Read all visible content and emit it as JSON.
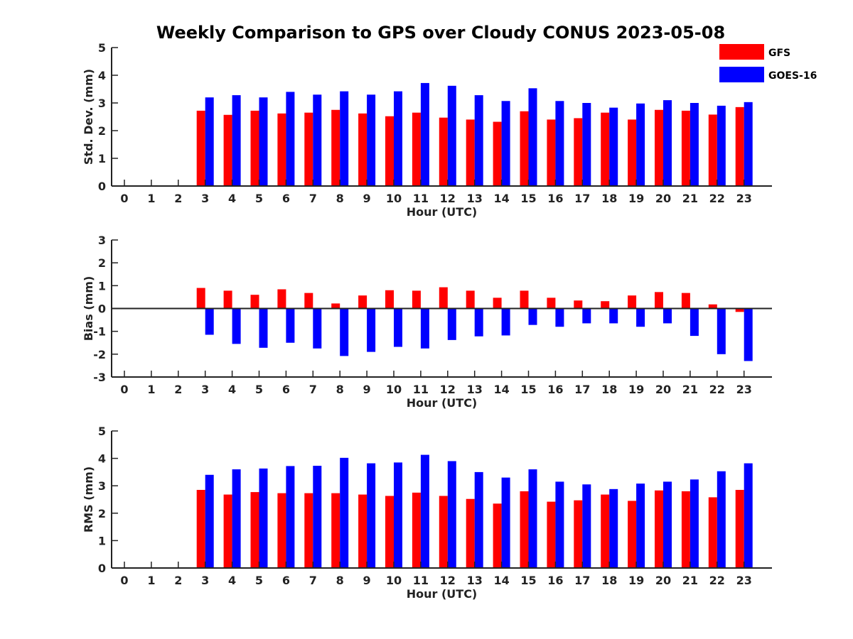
{
  "title": "Weekly Comparison to GPS over Cloudy CONUS 2023-05-08",
  "legend": {
    "placement": "top-right",
    "entries": [
      {
        "name": "GFS",
        "color": "#ff0000"
      },
      {
        "name": "GOES-16",
        "color": "#0000ff"
      }
    ]
  },
  "chart_data": [
    {
      "type": "bar",
      "xlabel": "Hour (UTC)",
      "ylabel": "Std. Dev. (mm)",
      "ylim": [
        0,
        5
      ],
      "yticks": [
        "0",
        "1",
        "2",
        "3",
        "4",
        "5"
      ],
      "categories": [
        "0",
        "1",
        "2",
        "3",
        "4",
        "5",
        "6",
        "7",
        "8",
        "9",
        "10",
        "11",
        "12",
        "13",
        "14",
        "15",
        "16",
        "17",
        "18",
        "19",
        "20",
        "21",
        "22",
        "23"
      ],
      "series": [
        {
          "name": "GFS",
          "color": "#ff0000",
          "values": [
            null,
            null,
            null,
            2.72,
            2.57,
            2.72,
            2.62,
            2.65,
            2.75,
            2.62,
            2.52,
            2.65,
            2.47,
            2.4,
            2.32,
            2.7,
            2.4,
            2.45,
            2.65,
            2.4,
            2.75,
            2.72,
            2.58,
            2.85
          ]
        },
        {
          "name": "GOES-16",
          "color": "#0000ff",
          "values": [
            null,
            null,
            null,
            3.2,
            3.28,
            3.2,
            3.4,
            3.3,
            3.42,
            3.3,
            3.42,
            3.72,
            3.62,
            3.28,
            3.07,
            3.53,
            3.07,
            3.0,
            2.83,
            2.98,
            3.1,
            3.0,
            2.9,
            3.03
          ]
        }
      ]
    },
    {
      "type": "bar",
      "xlabel": "Hour (UTC)",
      "ylabel": "Bias (mm)",
      "ylim": [
        -3,
        3
      ],
      "yticks": [
        "-3",
        "-2",
        "-1",
        "0",
        "1",
        "2",
        "3"
      ],
      "categories": [
        "0",
        "1",
        "2",
        "3",
        "4",
        "5",
        "6",
        "7",
        "8",
        "9",
        "10",
        "11",
        "12",
        "13",
        "14",
        "15",
        "16",
        "17",
        "18",
        "19",
        "20",
        "21",
        "22",
        "23"
      ],
      "series": [
        {
          "name": "GFS",
          "color": "#ff0000",
          "values": [
            null,
            null,
            null,
            0.9,
            0.78,
            0.6,
            0.84,
            0.68,
            0.22,
            0.57,
            0.8,
            0.78,
            0.93,
            0.78,
            0.47,
            0.78,
            0.47,
            0.35,
            0.32,
            0.57,
            0.72,
            0.68,
            0.18,
            -0.15
          ]
        },
        {
          "name": "GOES-16",
          "color": "#0000ff",
          "values": [
            null,
            null,
            null,
            -1.15,
            -1.55,
            -1.72,
            -1.5,
            -1.75,
            -2.08,
            -1.9,
            -1.68,
            -1.75,
            -1.38,
            -1.22,
            -1.18,
            -0.72,
            -0.8,
            -0.65,
            -0.65,
            -0.8,
            -0.65,
            -1.2,
            -2.0,
            -2.3
          ]
        }
      ]
    },
    {
      "type": "bar",
      "xlabel": "Hour (UTC)",
      "ylabel": "RMS (mm)",
      "ylim": [
        0,
        5
      ],
      "yticks": [
        "0",
        "1",
        "2",
        "3",
        "4",
        "5"
      ],
      "categories": [
        "0",
        "1",
        "2",
        "3",
        "4",
        "5",
        "6",
        "7",
        "8",
        "9",
        "10",
        "11",
        "12",
        "13",
        "14",
        "15",
        "16",
        "17",
        "18",
        "19",
        "20",
        "21",
        "22",
        "23"
      ],
      "series": [
        {
          "name": "GFS",
          "color": "#ff0000",
          "values": [
            null,
            null,
            null,
            2.85,
            2.68,
            2.77,
            2.73,
            2.73,
            2.73,
            2.68,
            2.63,
            2.75,
            2.63,
            2.52,
            2.35,
            2.8,
            2.42,
            2.47,
            2.68,
            2.45,
            2.83,
            2.8,
            2.58,
            2.85
          ]
        },
        {
          "name": "GOES-16",
          "color": "#0000ff",
          "values": [
            null,
            null,
            null,
            3.4,
            3.6,
            3.63,
            3.72,
            3.73,
            4.02,
            3.82,
            3.85,
            4.13,
            3.9,
            3.5,
            3.3,
            3.6,
            3.15,
            3.05,
            2.88,
            3.08,
            3.15,
            3.23,
            3.53,
            3.82
          ]
        }
      ]
    }
  ]
}
